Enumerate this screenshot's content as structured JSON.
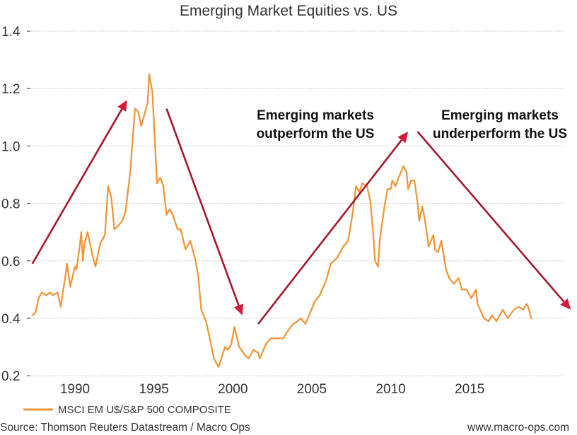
{
  "chart_data": {
    "type": "line",
    "title": "Emerging Market Equities vs. US",
    "xlabel": "",
    "ylabel": "",
    "xlim": [
      1987.2,
      2018.8
    ],
    "ylim": [
      0.2,
      1.4
    ],
    "grid": true,
    "y_ticks": [
      "1.4",
      "1.2",
      "1.0",
      "0.8",
      "0.6",
      "0.4",
      "0.2"
    ],
    "y_tick_values": [
      1.4,
      1.2,
      1.0,
      0.8,
      0.6,
      0.4,
      0.2
    ],
    "x_ticks": [
      "1990",
      "1995",
      "2000",
      "2005",
      "2010",
      "2015"
    ],
    "x_tick_values": [
      1990,
      1995,
      2000,
      2005,
      2010,
      2015
    ],
    "legend_position": "bottom-left",
    "series": [
      {
        "name": "MSCI EM U$/S&P 500 COMPOSITE",
        "color": "#f0963a",
        "points": [
          [
            1987.3,
            0.41
          ],
          [
            1987.5,
            0.42
          ],
          [
            1987.7,
            0.47
          ],
          [
            1987.9,
            0.49
          ],
          [
            1988.2,
            0.48
          ],
          [
            1988.4,
            0.49
          ],
          [
            1988.6,
            0.48
          ],
          [
            1988.9,
            0.49
          ],
          [
            1989.1,
            0.44
          ],
          [
            1989.4,
            0.55
          ],
          [
            1989.5,
            0.59
          ],
          [
            1989.7,
            0.51
          ],
          [
            1990.0,
            0.58
          ],
          [
            1990.1,
            0.57
          ],
          [
            1990.3,
            0.65
          ],
          [
            1990.4,
            0.7
          ],
          [
            1990.5,
            0.6
          ],
          [
            1990.6,
            0.66
          ],
          [
            1990.8,
            0.7
          ],
          [
            1991.1,
            0.62
          ],
          [
            1991.3,
            0.58
          ],
          [
            1991.6,
            0.66
          ],
          [
            1991.9,
            0.69
          ],
          [
            1992.1,
            0.86
          ],
          [
            1992.3,
            0.82
          ],
          [
            1992.5,
            0.71
          ],
          [
            1992.7,
            0.72
          ],
          [
            1993.0,
            0.74
          ],
          [
            1993.2,
            0.77
          ],
          [
            1993.5,
            0.91
          ],
          [
            1993.8,
            1.13
          ],
          [
            1994.0,
            1.12
          ],
          [
            1994.2,
            1.07
          ],
          [
            1994.3,
            1.09
          ],
          [
            1994.6,
            1.15
          ],
          [
            1994.7,
            1.25
          ],
          [
            1994.9,
            1.19
          ],
          [
            1995.2,
            0.87
          ],
          [
            1995.4,
            0.89
          ],
          [
            1995.6,
            0.86
          ],
          [
            1995.8,
            0.76
          ],
          [
            1996.0,
            0.78
          ],
          [
            1996.2,
            0.76
          ],
          [
            1996.5,
            0.71
          ],
          [
            1996.7,
            0.71
          ],
          [
            1997.0,
            0.64
          ],
          [
            1997.3,
            0.67
          ],
          [
            1997.6,
            0.61
          ],
          [
            1997.8,
            0.55
          ],
          [
            1998.0,
            0.43
          ],
          [
            1998.3,
            0.39
          ],
          [
            1998.5,
            0.34
          ],
          [
            1998.8,
            0.26
          ],
          [
            1998.9,
            0.25
          ],
          [
            1999.1,
            0.23
          ],
          [
            1999.5,
            0.3
          ],
          [
            1999.7,
            0.29
          ],
          [
            1999.9,
            0.31
          ],
          [
            2000.1,
            0.37
          ],
          [
            2000.4,
            0.3
          ],
          [
            2000.8,
            0.27
          ],
          [
            2001.0,
            0.26
          ],
          [
            2001.3,
            0.29
          ],
          [
            2001.6,
            0.28
          ],
          [
            2001.7,
            0.26
          ],
          [
            2002.1,
            0.31
          ],
          [
            2002.4,
            0.33
          ],
          [
            2002.8,
            0.33
          ],
          [
            2003.2,
            0.33
          ],
          [
            2003.4,
            0.35
          ],
          [
            2003.8,
            0.38
          ],
          [
            2004.1,
            0.39
          ],
          [
            2004.3,
            0.4
          ],
          [
            2004.6,
            0.38
          ],
          [
            2004.9,
            0.42
          ],
          [
            2005.2,
            0.46
          ],
          [
            2005.5,
            0.48
          ],
          [
            2005.9,
            0.53
          ],
          [
            2006.2,
            0.59
          ],
          [
            2006.6,
            0.61
          ],
          [
            2007.0,
            0.65
          ],
          [
            2007.3,
            0.67
          ],
          [
            2007.6,
            0.77
          ],
          [
            2007.8,
            0.86
          ],
          [
            2008.0,
            0.84
          ],
          [
            2008.2,
            0.87
          ],
          [
            2008.5,
            0.86
          ],
          [
            2008.7,
            0.81
          ],
          [
            2008.9,
            0.69
          ],
          [
            2009.0,
            0.6
          ],
          [
            2009.2,
            0.58
          ],
          [
            2009.3,
            0.67
          ],
          [
            2009.6,
            0.79
          ],
          [
            2009.8,
            0.85
          ],
          [
            2010.0,
            0.85
          ],
          [
            2010.1,
            0.88
          ],
          [
            2010.3,
            0.86
          ],
          [
            2010.5,
            0.89
          ],
          [
            2010.8,
            0.93
          ],
          [
            2011.0,
            0.91
          ],
          [
            2011.1,
            0.85
          ],
          [
            2011.3,
            0.88
          ],
          [
            2011.5,
            0.88
          ],
          [
            2011.7,
            0.8
          ],
          [
            2011.8,
            0.74
          ],
          [
            2012.0,
            0.79
          ],
          [
            2012.2,
            0.73
          ],
          [
            2012.4,
            0.65
          ],
          [
            2012.7,
            0.69
          ],
          [
            2012.8,
            0.64
          ],
          [
            2013.0,
            0.63
          ],
          [
            2013.2,
            0.67
          ],
          [
            2013.5,
            0.57
          ],
          [
            2013.7,
            0.54
          ],
          [
            2014.0,
            0.52
          ],
          [
            2014.3,
            0.54
          ],
          [
            2014.5,
            0.5
          ],
          [
            2014.8,
            0.5
          ],
          [
            2015.1,
            0.47
          ],
          [
            2015.4,
            0.5
          ],
          [
            2015.5,
            0.45
          ],
          [
            2015.9,
            0.4
          ],
          [
            2016.2,
            0.39
          ],
          [
            2016.4,
            0.41
          ],
          [
            2016.7,
            0.39
          ],
          [
            2017.1,
            0.43
          ],
          [
            2017.4,
            0.4
          ],
          [
            2017.8,
            0.43
          ],
          [
            2018.1,
            0.44
          ],
          [
            2018.4,
            0.43
          ],
          [
            2018.6,
            0.45
          ],
          [
            2018.7,
            0.44
          ],
          [
            2018.9,
            0.4
          ]
        ]
      }
    ],
    "annotations": [
      {
        "id": "outperform",
        "lines": [
          "Emerging markets",
          "outperform the US"
        ]
      },
      {
        "id": "underperform",
        "lines": [
          "Emerging markets",
          "underperform the US"
        ]
      }
    ],
    "trend_arrows": [
      {
        "from": [
          1987.3,
          0.59
        ],
        "to": [
          1993.3,
          1.16
        ],
        "direction": "up"
      },
      {
        "from": [
          1995.8,
          1.13
        ],
        "to": [
          2000.6,
          0.41
        ],
        "direction": "down"
      },
      {
        "from": [
          2001.6,
          0.38
        ],
        "to": [
          2011.1,
          1.05
        ],
        "direction": "up"
      },
      {
        "from": [
          2011.7,
          1.05
        ],
        "to": [
          2021.4,
          0.43
        ],
        "direction": "down"
      }
    ],
    "arrow_color": "#a3172e",
    "arrow_head_color": "#d31b3a"
  },
  "footer": {
    "source": "Source: Thomson Reuters Datastream / Macro Ops",
    "website": "www.macro-ops.com"
  }
}
